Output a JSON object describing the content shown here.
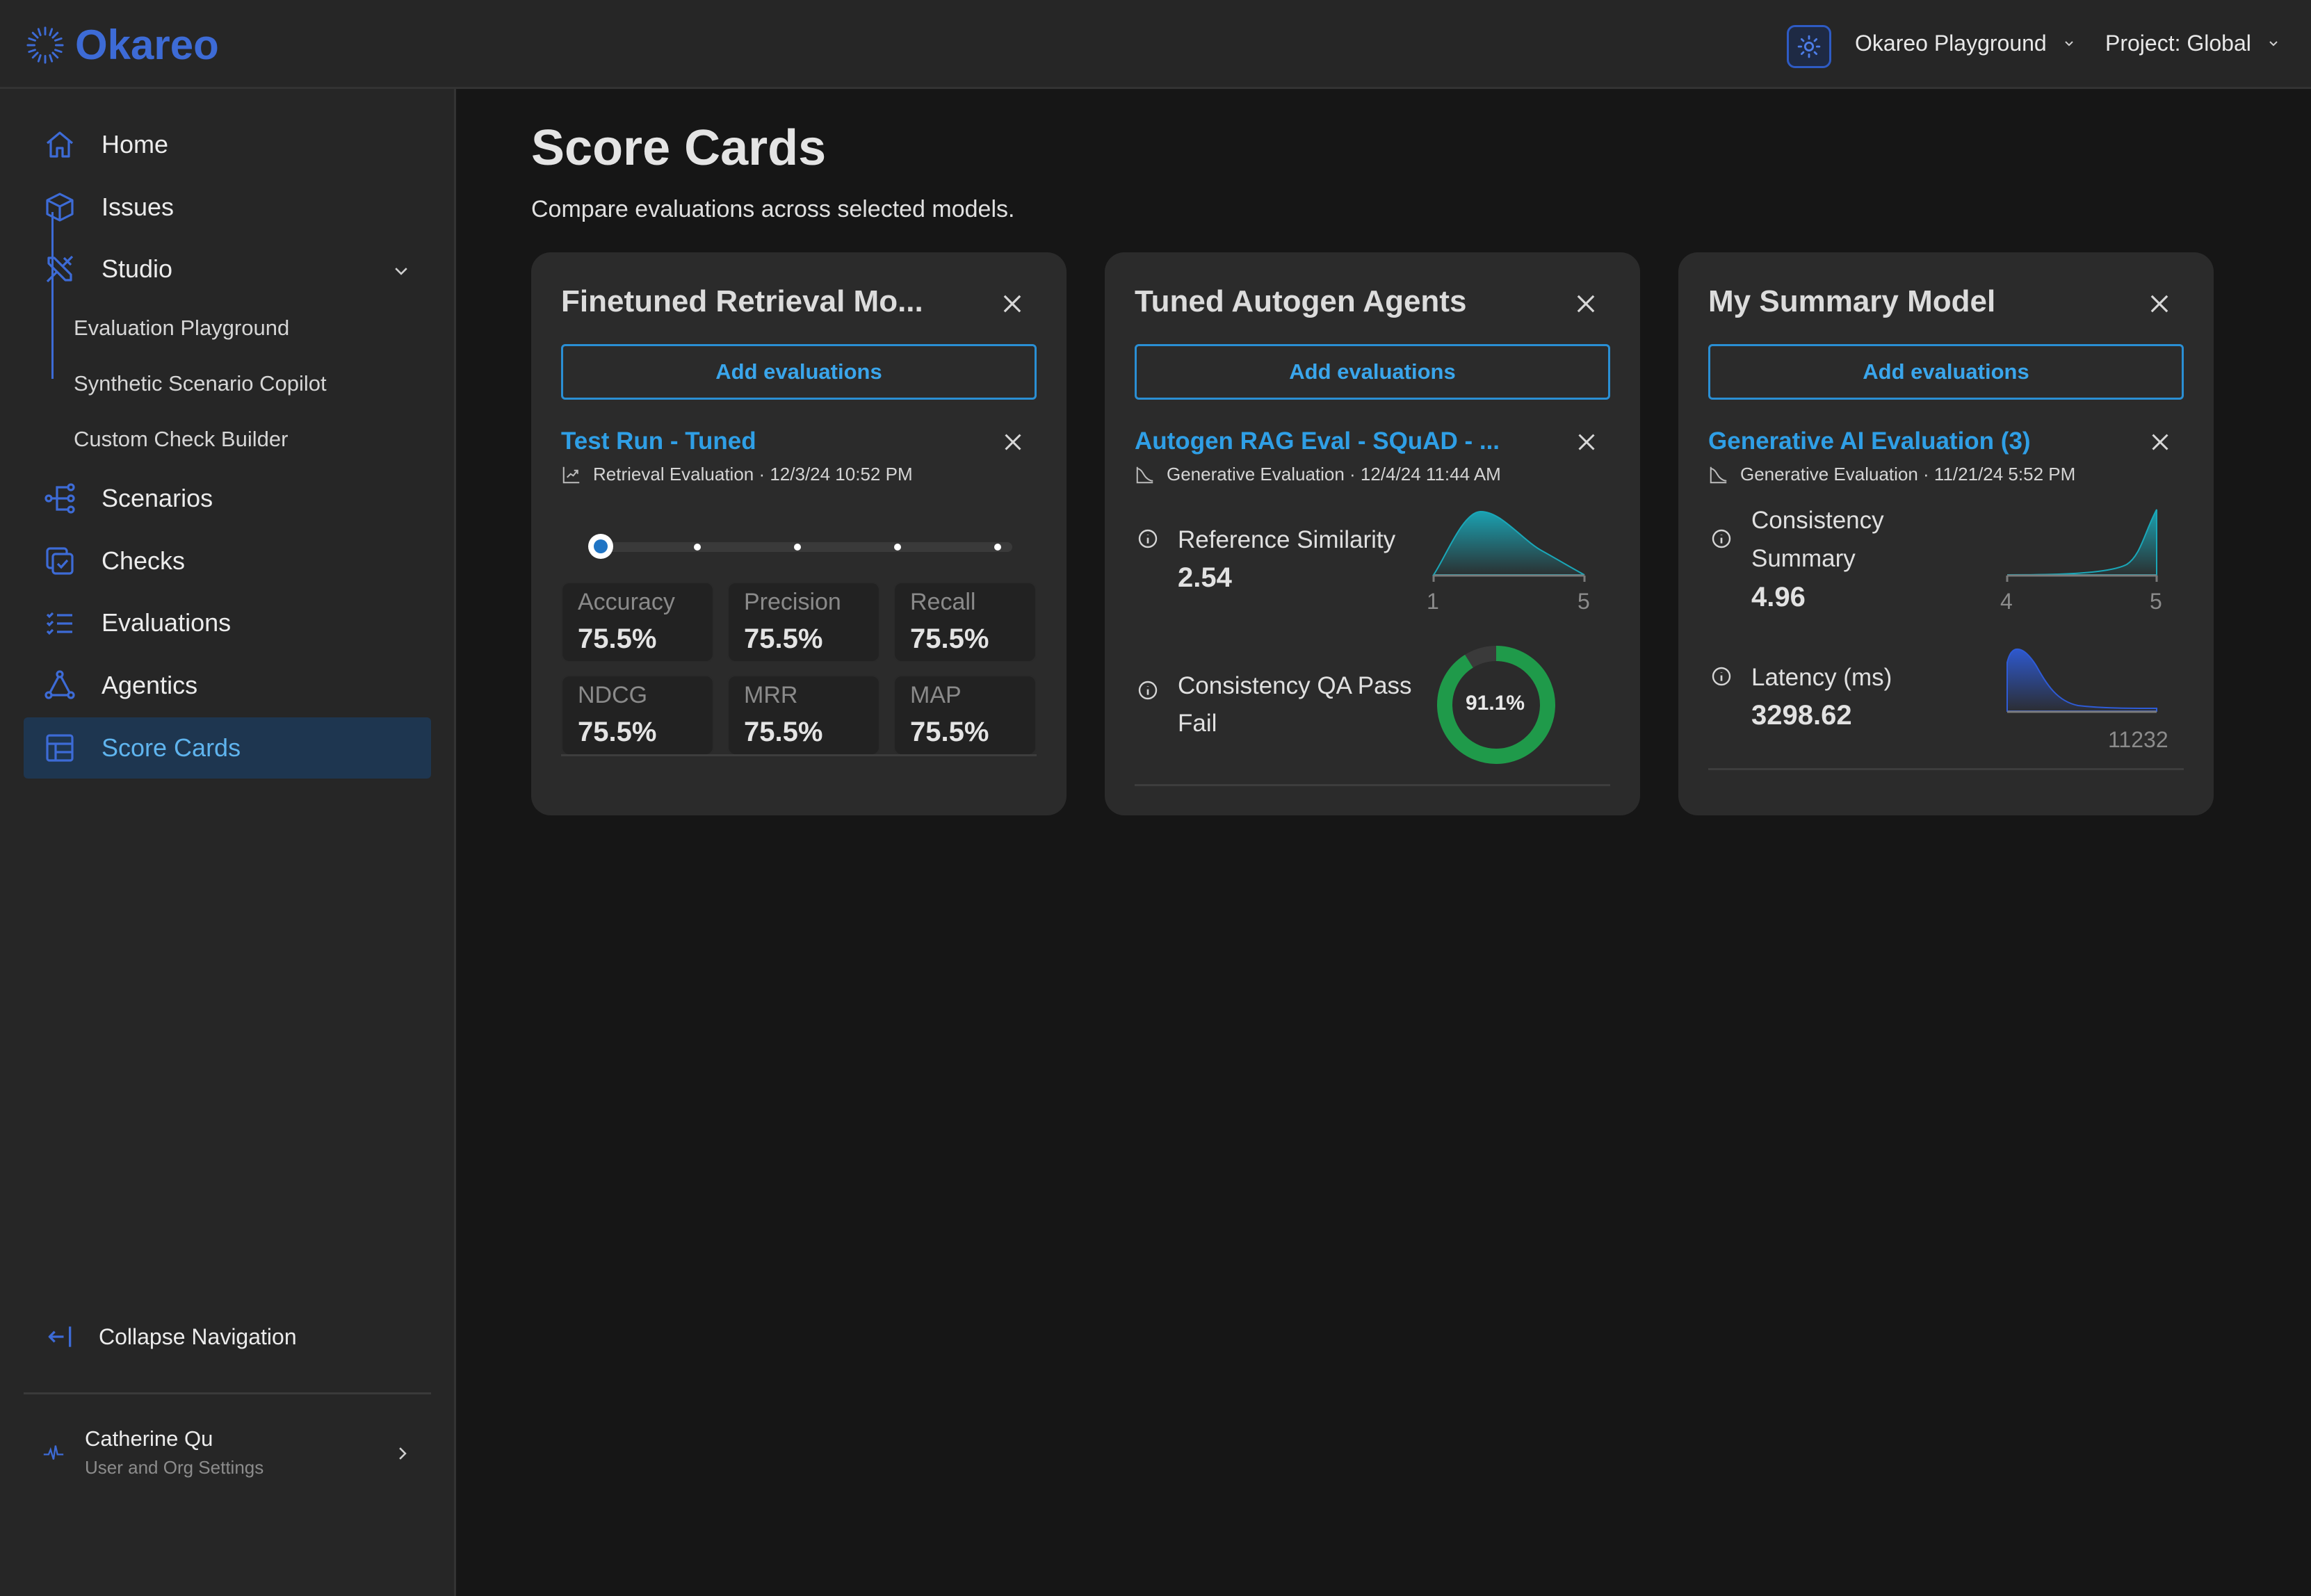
{
  "header": {
    "brand": "Okareo",
    "org_select": "Okareo Playground",
    "project_select": "Project: Global"
  },
  "sidebar": {
    "items": [
      {
        "label": "Home",
        "icon": "home-icon"
      },
      {
        "label": "Issues",
        "icon": "cube-icon"
      },
      {
        "label": "Studio",
        "icon": "tools-icon"
      },
      {
        "label": "Scenarios",
        "icon": "branch-icon"
      },
      {
        "label": "Checks",
        "icon": "check-square-icon"
      },
      {
        "label": "Evaluations",
        "icon": "checklist-icon"
      },
      {
        "label": "Agentics",
        "icon": "triangle-nodes-icon"
      },
      {
        "label": "Score Cards",
        "icon": "table-icon",
        "active": true
      }
    ],
    "studio_sub_items": [
      "Evaluation Playground",
      "Synthetic Scenario Copilot",
      "Custom Check Builder"
    ],
    "collapse_label": "Collapse Navigation",
    "user": {
      "name": "Catherine Qu",
      "subtitle": "User and Org Settings"
    }
  },
  "main": {
    "title": "Score Cards",
    "subtitle": "Compare evaluations across selected models."
  },
  "cards": [
    {
      "title": "Finetuned Retrieval Mo...",
      "add_label": "Add evaluations",
      "eval": {
        "title": "Test Run - Tuned",
        "meta": "Retrieval Evaluation · 12/3/24 10:52 PM",
        "slider_position": 0,
        "metrics": [
          {
            "label": "Accuracy",
            "value": "75.5%"
          },
          {
            "label": "Precision",
            "value": "75.5%"
          },
          {
            "label": "Recall",
            "value": "75.5%"
          },
          {
            "label": "NDCG",
            "value": "75.5%"
          },
          {
            "label": "MRR",
            "value": "75.5%"
          },
          {
            "label": "MAP",
            "value": "75.5%"
          }
        ]
      }
    },
    {
      "title": "Tuned Autogen Agents",
      "add_label": "Add evaluations",
      "eval": {
        "title": "Autogen RAG Eval - SQuAD - ...",
        "meta": "Generative Evaluation · 12/4/24 11:44 AM",
        "metrics": [
          {
            "name": "Reference Similarity",
            "value": "2.54",
            "axis_min": "1",
            "axis_max": "5",
            "color": "#1aa7b8"
          },
          {
            "name_line1": "Consistency QA Pass",
            "name_line2": "Fail",
            "donut_label": "91.1%",
            "percent": 91.1,
            "color": "#1f9a4a"
          }
        ]
      }
    },
    {
      "title": "My Summary Model",
      "add_label": "Add evaluations",
      "eval": {
        "title": "Generative AI Evaluation (3)",
        "meta": "Generative Evaluation · 11/21/24 5:52 PM",
        "metrics": [
          {
            "name_line1": "Consistency",
            "name_line2": "Summary",
            "value": "4.96",
            "axis_min": "4",
            "axis_max": "5",
            "color": "#1aa7b8"
          },
          {
            "name": "Latency (ms)",
            "value": "3298.62",
            "axis_max": "11232",
            "color": "#2e5bd6"
          }
        ]
      }
    }
  ]
}
